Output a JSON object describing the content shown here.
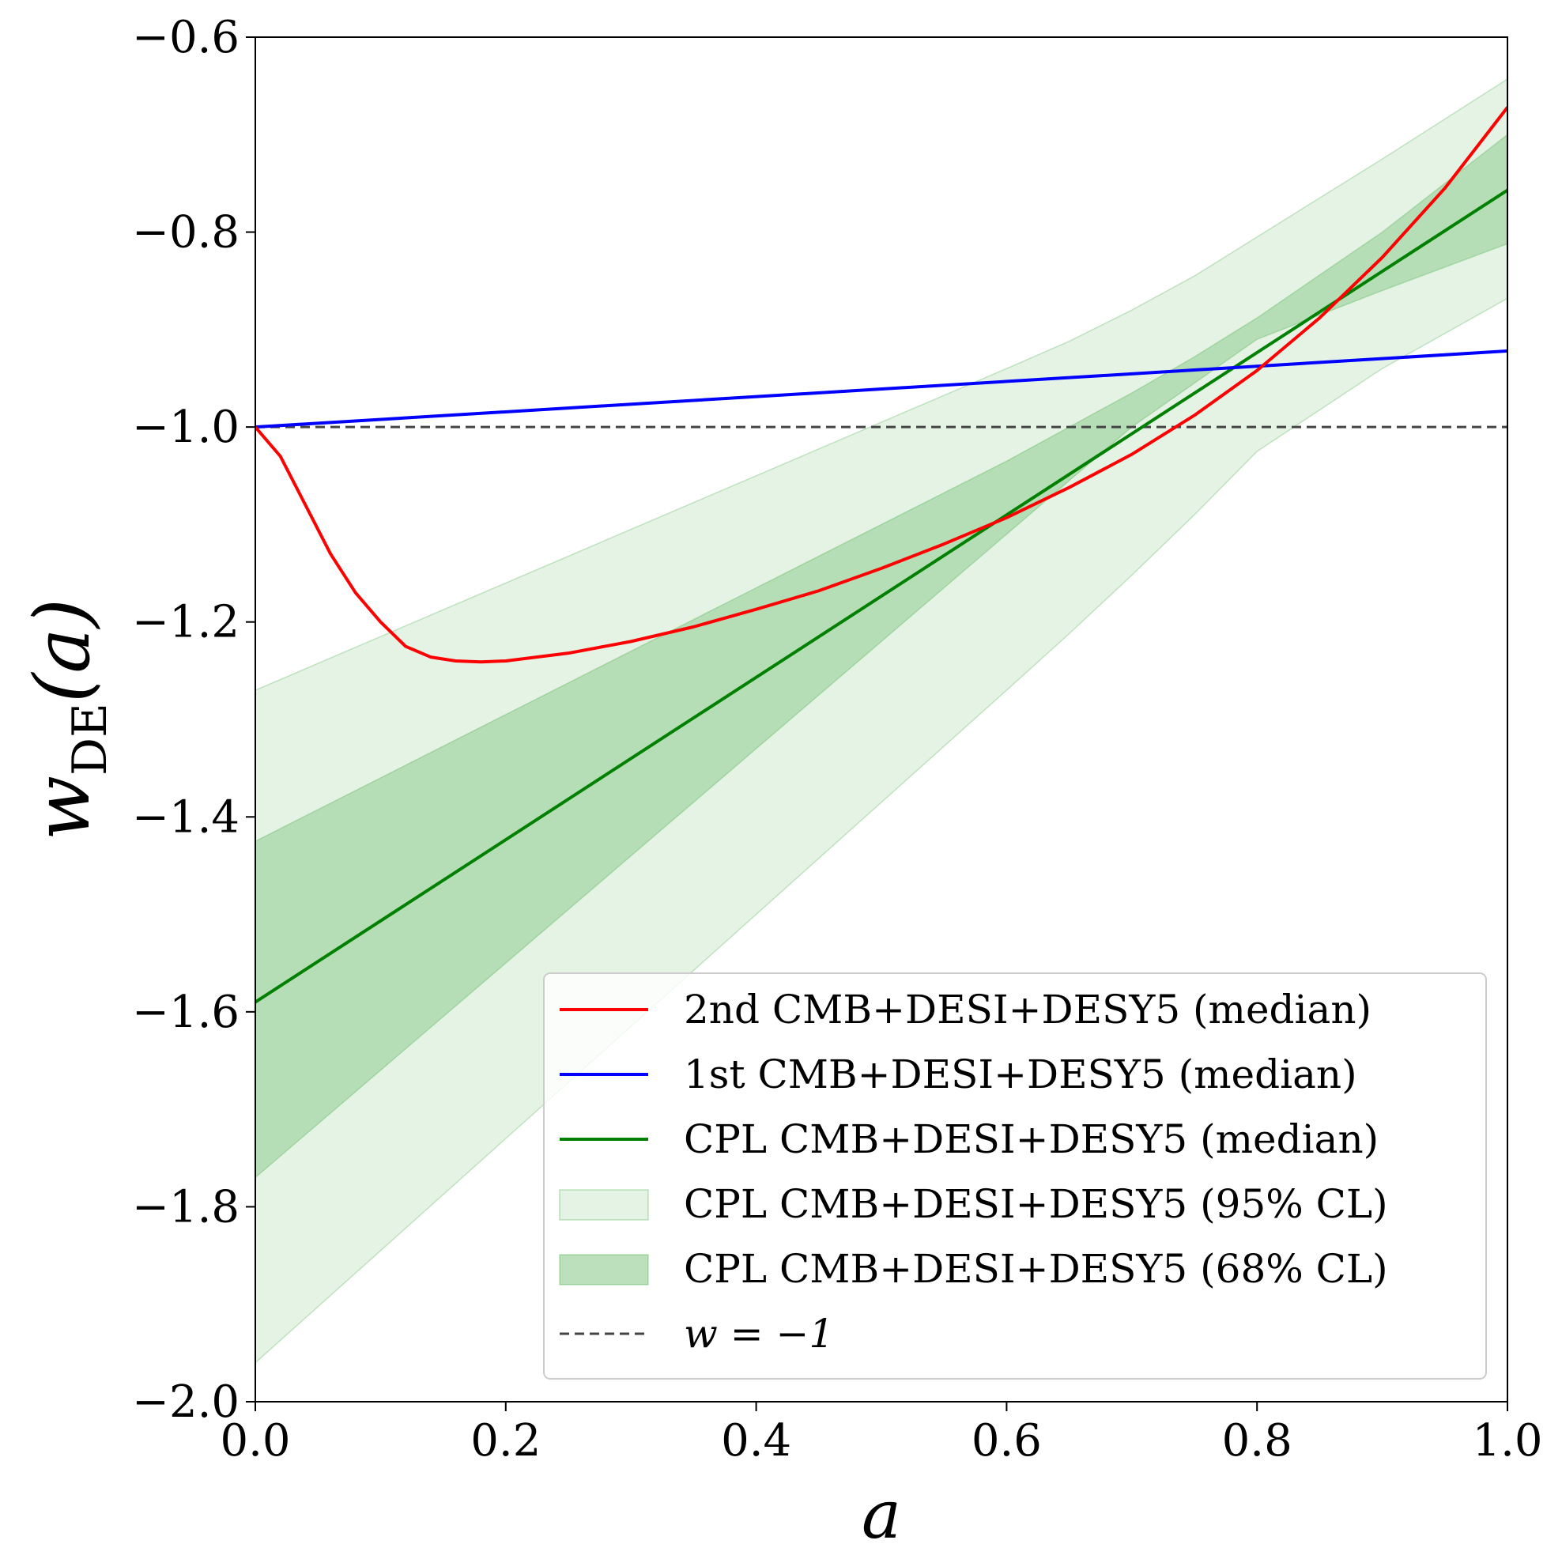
{
  "chart_data": {
    "type": "line",
    "xlabel": "a",
    "ylabel_main": "w",
    "ylabel_sub": "DE",
    "ylabel_arg": "(a)",
    "xlim": [
      0.0,
      1.0
    ],
    "ylim": [
      -2.0,
      -0.6
    ],
    "x_ticks": [
      0.0,
      0.2,
      0.4,
      0.6,
      0.8,
      1.0
    ],
    "x_tick_labels": [
      "0.0",
      "0.2",
      "0.4",
      "0.6",
      "0.8",
      "1.0"
    ],
    "y_ticks": [
      -2.0,
      -1.8,
      -1.6,
      -1.4,
      -1.2,
      -1.0,
      -0.8,
      -0.6
    ],
    "y_tick_labels": [
      "−2.0",
      "−1.8",
      "−1.6",
      "−1.4",
      "−1.2",
      "−1.0",
      "−0.8",
      "−0.6"
    ],
    "series": [
      {
        "name": "2nd CMB+DESI+DESY5 (median)",
        "color": "#ff0000",
        "x": [
          0.0,
          0.02,
          0.04,
          0.06,
          0.08,
          0.1,
          0.12,
          0.14,
          0.16,
          0.18,
          0.2,
          0.25,
          0.3,
          0.35,
          0.4,
          0.45,
          0.5,
          0.55,
          0.6,
          0.65,
          0.7,
          0.75,
          0.8,
          0.85,
          0.9,
          0.95,
          1.0
        ],
        "values": [
          -1.0,
          -1.03,
          -1.08,
          -1.13,
          -1.17,
          -1.2,
          -1.225,
          -1.236,
          -1.24,
          -1.241,
          -1.24,
          -1.232,
          -1.22,
          -1.205,
          -1.187,
          -1.168,
          -1.145,
          -1.12,
          -1.093,
          -1.062,
          -1.028,
          -0.988,
          -0.942,
          -0.888,
          -0.826,
          -0.755,
          -0.672
        ]
      },
      {
        "name": "1st CMB+DESI+DESY5 (median)",
        "color": "#0000ff",
        "x": [
          0.0,
          1.0
        ],
        "values": [
          -1.0,
          -0.922
        ]
      },
      {
        "name": "CPL CMB+DESI+DESY5 (median)",
        "color": "#008000",
        "x": [
          0.0,
          1.0
        ],
        "values": [
          -1.59,
          -0.757
        ]
      },
      {
        "name": "w = −1",
        "color": "#444444",
        "style": "dashed",
        "x": [
          0.0,
          1.0
        ],
        "values": [
          -1.0,
          -1.0
        ]
      }
    ],
    "bands": [
      {
        "name": "CPL CMB+DESI+DESY5 (95% CL)",
        "color": "#2ca02c",
        "opacity": 0.12,
        "x": [
          0.0,
          0.1,
          0.2,
          0.3,
          0.4,
          0.5,
          0.6,
          0.65,
          0.7,
          0.75,
          0.8,
          0.9,
          1.0
        ],
        "lower": [
          -1.96,
          -1.845,
          -1.73,
          -1.615,
          -1.5,
          -1.385,
          -1.27,
          -1.212,
          -1.152,
          -1.09,
          -1.025,
          -0.94,
          -0.868
        ],
        "upper": [
          -1.27,
          -1.215,
          -1.16,
          -1.105,
          -1.05,
          -0.995,
          -0.94,
          -0.912,
          -0.88,
          -0.845,
          -0.805,
          -0.725,
          -0.643
        ]
      },
      {
        "name": "CPL CMB+DESI+DESY5 (68% CL)",
        "color": "#2ca02c",
        "opacity": 0.25,
        "x": [
          0.0,
          0.1,
          0.2,
          0.3,
          0.4,
          0.5,
          0.6,
          0.65,
          0.7,
          0.75,
          0.8,
          0.9,
          1.0
        ],
        "lower": [
          -1.77,
          -1.66,
          -1.55,
          -1.44,
          -1.33,
          -1.22,
          -1.11,
          -1.055,
          -1.0,
          -0.955,
          -0.91,
          -0.86,
          -0.812
        ],
        "upper": [
          -1.425,
          -1.36,
          -1.295,
          -1.23,
          -1.165,
          -1.1,
          -1.035,
          -1.0,
          -0.965,
          -0.928,
          -0.888,
          -0.8,
          -0.7
        ]
      }
    ],
    "legend": {
      "placement": "lower-right",
      "entries": [
        {
          "label": "2nd CMB+DESI+DESY5 (median)",
          "kind": "line",
          "color": "#ff0000"
        },
        {
          "label": "1st CMB+DESI+DESY5 (median)",
          "kind": "line",
          "color": "#0000ff"
        },
        {
          "label": "CPL CMB+DESI+DESY5 (median)",
          "kind": "line",
          "color": "#008000"
        },
        {
          "label": "CPL CMB+DESI+DESY5 (95% CL)",
          "kind": "patch",
          "color": "#2ca02c",
          "opacity": 0.12
        },
        {
          "label": "CPL CMB+DESI+DESY5 (68% CL)",
          "kind": "patch",
          "color": "#2ca02c",
          "opacity": 0.32
        },
        {
          "label": "w = −1",
          "kind": "dashed",
          "color": "#444444"
        }
      ]
    }
  }
}
